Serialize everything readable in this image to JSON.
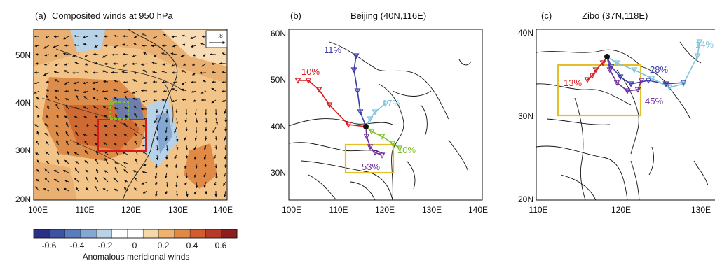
{
  "panels": [
    {
      "id": "a",
      "label": "(a)",
      "title": "Composited winds at 950 hPa",
      "x_ticks": [
        "100E",
        "110E",
        "120E",
        "130E",
        "140E"
      ],
      "y_ticks": [
        "20N",
        "30N",
        "40N",
        "50N"
      ],
      "ref_vector": ".8"
    },
    {
      "id": "b",
      "label": "(b)",
      "title": "Beijing (40N,116E)",
      "x_ticks": [
        "100E",
        "110E",
        "120E",
        "130E",
        "140E"
      ],
      "y_ticks": [
        "30N",
        "40N",
        "50N",
        "60N"
      ],
      "percents": [
        "11%",
        "10%",
        "17%",
        "10%",
        "53%"
      ]
    },
    {
      "id": "c",
      "label": "(c)",
      "title": "Zibo (37N,118E)",
      "x_ticks": [
        "110E",
        "120E",
        "130E"
      ],
      "y_ticks": [
        "20N",
        "30N",
        "40N"
      ],
      "percents": [
        "14%",
        "13%",
        "28%",
        "45%"
      ]
    }
  ],
  "colorbar": {
    "ticks": [
      "-0.6",
      "-0.4",
      "-0.2",
      "0",
      "0.2",
      "0.4",
      "0.6"
    ],
    "label": "Anomalous meridional winds",
    "colors": [
      "#2b2f86",
      "#3d52a3",
      "#5a7cbc",
      "#85a8d2",
      "#b8d3e8",
      "#ffffff",
      "#ffffff",
      "#f6d8a8",
      "#eeb46e",
      "#e08a45",
      "#cf5d30",
      "#b73a28",
      "#8c1d1f"
    ]
  },
  "colors": {
    "red": "#d7191c",
    "darkblue": "#3b3ba8",
    "lightblue": "#7fc4dd",
    "green": "#7cbf2a",
    "purple": "#6f2fa0",
    "box_yellow": "#e3bf2a",
    "box_red": "#d7191c",
    "box_green": "#7cbf2a",
    "orange_field": "#eeb46e"
  }
}
